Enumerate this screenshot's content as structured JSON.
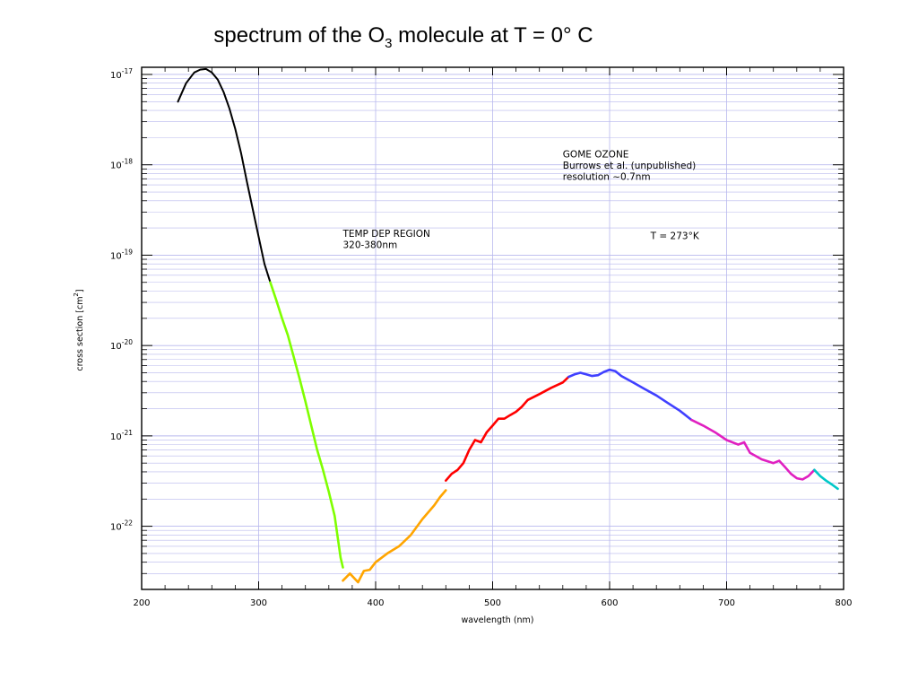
{
  "slide_title": {
    "prefix": "spectrum of the O",
    "subscript": "3",
    "suffix": " molecule at T = 0°  C"
  },
  "chart_data": {
    "type": "line",
    "xlabel": "wavelength (nm)",
    "ylabel": "cross section [cm²]",
    "xlim": [
      200,
      800
    ],
    "ylim": [
      2e-23,
      1.2e-17
    ],
    "yscale": "log",
    "grid": true,
    "x_ticks": [
      "200",
      "300",
      "400",
      "500",
      "600",
      "700",
      "800"
    ],
    "y_ticks": [
      {
        "base": "10",
        "exp": "-17",
        "value": 1e-17
      },
      {
        "base": "10",
        "exp": "-18",
        "value": 1e-18
      },
      {
        "base": "10",
        "exp": "-19",
        "value": 1e-19
      },
      {
        "base": "10",
        "exp": "-20",
        "value": 1e-20
      },
      {
        "base": "10",
        "exp": "-21",
        "value": 1e-21
      },
      {
        "base": "10",
        "exp": "-22",
        "value": 1e-22
      }
    ],
    "annotations": [
      {
        "lines": [
          "GOME OZONE",
          "Burrows et al. (unpublished)",
          "resolution ~0.7nm"
        ],
        "x": 560,
        "y": 1.2e-18
      },
      {
        "lines": [
          "TEMP DEP REGION",
          "320-380nm"
        ],
        "x": 372,
        "y": 1.6e-19
      },
      {
        "lines": [
          "T = 273°K"
        ],
        "x": 635,
        "y": 1.5e-19
      }
    ],
    "series": [
      {
        "color": "#000000",
        "x": [
          231,
          238,
          245,
          250,
          255,
          260,
          265,
          270,
          275,
          280,
          285,
          290,
          295,
          300,
          305,
          310
        ],
        "y": [
          5e-18,
          8e-18,
          1.05e-17,
          1.13e-17,
          1.15e-17,
          1.05e-17,
          8.8e-18,
          6.4e-18,
          4.2e-18,
          2.5e-18,
          1.35e-18,
          6.5e-19,
          3.2e-19,
          1.6e-19,
          8e-20,
          5e-20
        ]
      },
      {
        "color": "#7fff00",
        "x": [
          310,
          315,
          320,
          325,
          330,
          335,
          340,
          345,
          350,
          355,
          360,
          365,
          370,
          372
        ],
        "y": [
          5e-20,
          3.2e-20,
          2e-20,
          1.3e-20,
          7.5e-21,
          4.3e-21,
          2.4e-21,
          1.3e-21,
          7e-22,
          4.2e-22,
          2.4e-22,
          1.3e-22,
          4.5e-23,
          3.5e-23
        ]
      },
      {
        "color": "#ffa500",
        "x": [
          372,
          378,
          385,
          390,
          395,
          400,
          410,
          420,
          430,
          440,
          450,
          455,
          460
        ],
        "y": [
          2.5e-23,
          3e-23,
          2.4e-23,
          3.2e-23,
          3.3e-23,
          4e-23,
          5e-23,
          6e-23,
          8e-23,
          1.2e-22,
          1.7e-22,
          2.1e-22,
          2.5e-22
        ]
      },
      {
        "color": "#ff0000",
        "x": [
          460,
          465,
          470,
          475,
          480,
          485,
          490,
          495,
          500,
          505,
          510,
          515,
          520,
          525,
          530,
          540,
          550,
          560,
          565
        ],
        "y": [
          3.2e-22,
          3.8e-22,
          4.2e-22,
          5e-22,
          7e-22,
          9e-22,
          8.5e-22,
          1.1e-21,
          1.3e-21,
          1.55e-21,
          1.55e-21,
          1.7e-21,
          1.85e-21,
          2.1e-21,
          2.5e-21,
          2.9e-21,
          3.4e-21,
          3.9e-21,
          4.5e-21
        ]
      },
      {
        "color": "#4040ff",
        "x": [
          565,
          570,
          575,
          580,
          585,
          590,
          595,
          600,
          605,
          610,
          620,
          630,
          640,
          650,
          660,
          670
        ],
        "y": [
          4.5e-21,
          4.8e-21,
          5e-21,
          4.8e-21,
          4.6e-21,
          4.7e-21,
          5.1e-21,
          5.4e-21,
          5.2e-21,
          4.6e-21,
          3.9e-21,
          3.3e-21,
          2.8e-21,
          2.3e-21,
          1.9e-21,
          1.5e-21
        ]
      },
      {
        "color": "#e020c0",
        "x": [
          670,
          680,
          690,
          700,
          710,
          715,
          720,
          730,
          740,
          745,
          750,
          755,
          760,
          765,
          770,
          775
        ],
        "y": [
          1.5e-21,
          1.3e-21,
          1.1e-21,
          9e-22,
          8e-22,
          8.5e-22,
          6.5e-22,
          5.5e-22,
          5e-22,
          5.3e-22,
          4.5e-22,
          3.8e-22,
          3.4e-22,
          3.3e-22,
          3.6e-22,
          4.2e-22
        ]
      },
      {
        "color": "#00c8c8",
        "x": [
          775,
          780,
          785,
          790,
          795
        ],
        "y": [
          4.2e-22,
          3.6e-22,
          3.2e-22,
          2.9e-22,
          2.6e-22
        ]
      }
    ]
  }
}
